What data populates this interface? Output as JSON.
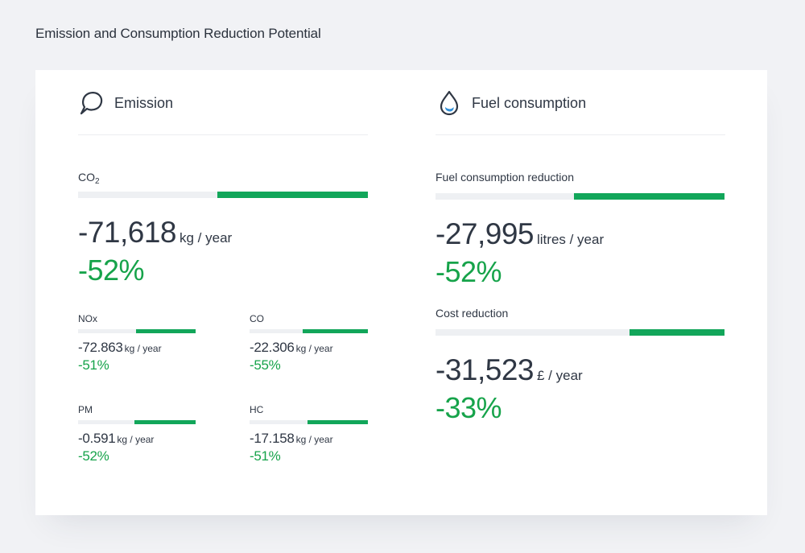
{
  "page": {
    "title": "Emission and Consumption Reduction Potential"
  },
  "colors": {
    "accent_green": "#12a65a",
    "bar_track": "#eef0f3",
    "text_dark": "#2f3744",
    "icon_blue": "#2f8fd8"
  },
  "emission": {
    "title": "Emission",
    "icon": "speech-bubble-icon",
    "co2": {
      "label": "CO",
      "label_sub": "2",
      "value": "-71,618",
      "unit": "kg / year",
      "percent": "-52%",
      "bar_fill_fraction": 0.52
    },
    "pollutants": [
      {
        "label": "NOx",
        "value": "-72.863",
        "unit": "kg / year",
        "percent": "-51%",
        "bar_fill_fraction": 0.51
      },
      {
        "label": "CO",
        "value": "-22.306",
        "unit": "kg / year",
        "percent": "-55%",
        "bar_fill_fraction": 0.55
      },
      {
        "label": "PM",
        "value": "-0.591",
        "unit": "kg / year",
        "percent": "-52%",
        "bar_fill_fraction": 0.52
      },
      {
        "label": "HC",
        "value": "-17.158",
        "unit": "kg / year",
        "percent": "-51%",
        "bar_fill_fraction": 0.51
      }
    ]
  },
  "fuel": {
    "title": "Fuel consumption",
    "icon": "water-drop-icon",
    "consumption": {
      "label": "Fuel consumption reduction",
      "value": "-27,995",
      "unit": "litres / year",
      "percent": "-52%",
      "bar_fill_fraction": 0.52
    },
    "cost": {
      "label": "Cost reduction",
      "value": "-31,523",
      "unit": "£ / year",
      "percent": "-33%",
      "bar_fill_fraction": 0.33
    }
  }
}
